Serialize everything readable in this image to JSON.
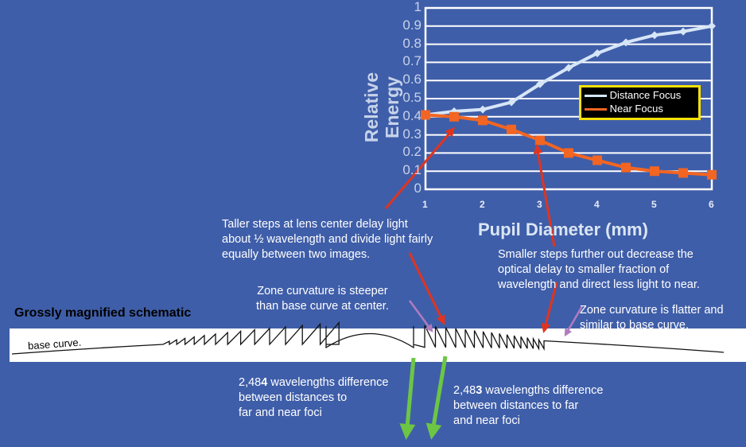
{
  "chart_data": {
    "type": "line",
    "xlabel": "Pupil Diameter (mm)",
    "ylabel": "Relative Energy",
    "x": [
      1,
      1.5,
      2,
      2.5,
      3,
      3.5,
      4,
      4.5,
      5,
      5.5,
      6
    ],
    "x_ticks": [
      "1",
      "2",
      "3",
      "4",
      "5",
      "6"
    ],
    "y_ticks": [
      "0",
      "0.1",
      "0.2",
      "0.3",
      "0.4",
      "0.5",
      "0.6",
      "0.7",
      "0.8",
      "0.9",
      "1"
    ],
    "xlim": [
      1,
      6
    ],
    "ylim": [
      0,
      1
    ],
    "grid": "horizontal",
    "legend_position": "right",
    "series": [
      {
        "name": "Distance Focus",
        "color": "#d6e6f7",
        "marker": "diamond",
        "values": [
          0.41,
          0.43,
          0.44,
          0.48,
          0.58,
          0.67,
          0.75,
          0.81,
          0.85,
          0.87,
          0.9
        ]
      },
      {
        "name": "Near Focus",
        "color": "#f26522",
        "marker": "square",
        "values": [
          0.41,
          0.4,
          0.38,
          0.33,
          0.27,
          0.2,
          0.16,
          0.12,
          0.1,
          0.09,
          0.08
        ]
      }
    ]
  },
  "annotations": {
    "taller_steps": "Taller steps at lens center delay light\nabout ½ wavelength and divide light fairly\nequally between two images.",
    "smaller_steps": "Smaller steps further out decrease the\noptical delay to smaller fraction of\nwavelength and direct less light to near.",
    "zone_steeper": "Zone curvature is steeper\nthan base curve at center.",
    "zone_flatter": "Zone curvature is flatter and\nsimilar to base curve.",
    "schematic_title": "Grossly magnified schematic",
    "base_curve": "base curve.",
    "diff_left_prefix": "2,48",
    "diff_left_bold": "4",
    "diff_left_rest": " wavelengths difference\nbetween distances to\nfar and near foci",
    "diff_right_prefix": "2,48",
    "diff_right_bold": "3",
    "diff_right_rest": " wavelengths difference\nbetween distances to far\nand near foci"
  },
  "colors": {
    "background": "#3f5ea9",
    "arrow_red": "#e0341f",
    "arrow_purple": "#b07cc0",
    "arrow_green": "#6cc644",
    "legend_border": "#f5e10a"
  }
}
